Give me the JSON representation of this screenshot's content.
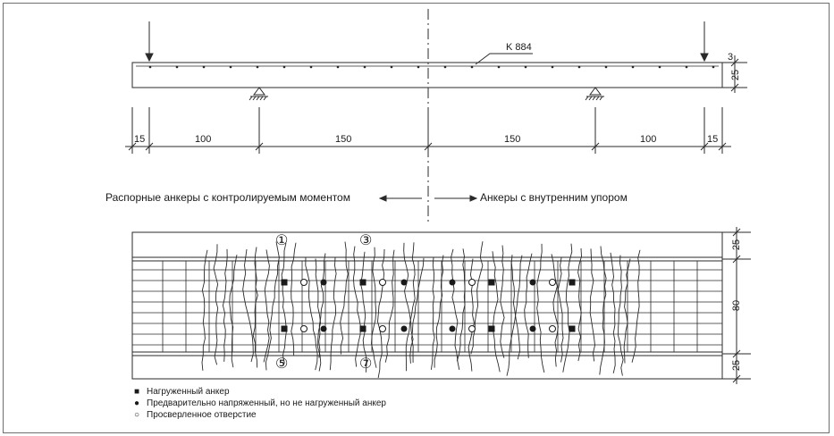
{
  "beam": {
    "label": "K 884",
    "top_dim": "3",
    "height_dim": "25",
    "spans": [
      "15",
      "100",
      "150",
      "150",
      "100",
      "15"
    ]
  },
  "anchors": {
    "left_caption": "Распорные анкеры с контролируемым моментом",
    "right_caption": "Анкеры с внутренним упором"
  },
  "plan": {
    "markers": [
      "①",
      "③",
      "⑤",
      "⑦"
    ],
    "dims": [
      "25",
      "80",
      "25"
    ]
  },
  "legend": [
    {
      "symbol": "■",
      "text": "Нагруженный анкер"
    },
    {
      "symbol": "●",
      "text": "Предварительно напряженный, но не нагруженный анкер"
    },
    {
      "symbol": "○",
      "text": "Просверленное отверстие"
    }
  ],
  "colors": {
    "line": "#2a2a2a",
    "border": "#6e6e6e",
    "background": "#ffffff"
  }
}
